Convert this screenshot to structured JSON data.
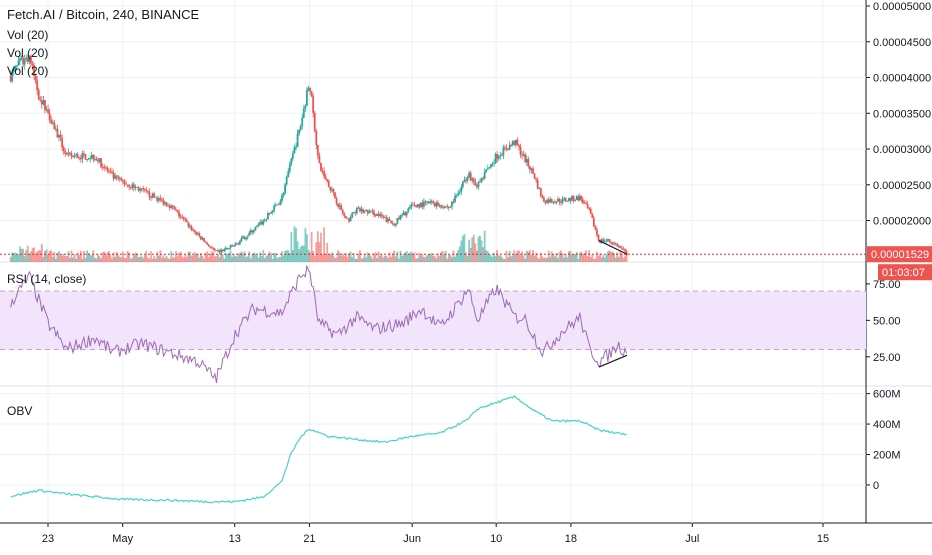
{
  "header": {
    "symbol_title": "Fetch.AI / Bitcoin, 240, BINANCE",
    "volume_labels": [
      "Vol (20)",
      "Vol (20)",
      "Vol (20)"
    ]
  },
  "colors": {
    "up": "#26a69a",
    "down": "#ef5350",
    "rsi_line": "#9c6ab2",
    "rsi_band_fill": "#f1e4fb",
    "rsi_band_border": "#c4a0d6",
    "obv_line": "#45d3c6",
    "price_line": "#d32f2f",
    "price_badge": "#ef5350",
    "grid": "#eef0f3",
    "divergence_line": "#131722"
  },
  "chart_data": [
    {
      "type": "candlestick",
      "pane": "price",
      "title": "Fetch.AI / Bitcoin, 240, BINANCE",
      "ylim": [
        1.42e-05,
        5e-05
      ],
      "y_ticks": [
        "0.00005000",
        "0.00004500",
        "0.00004000",
        "0.00003500",
        "0.00003000",
        "0.00002500",
        "0.00002000"
      ],
      "y_tick_values": [
        5e-05,
        4.5e-05,
        4e-05,
        3.5e-05,
        3e-05,
        2.5e-05,
        2e-05
      ],
      "anchors": [
        {
          "x": "Apr 19",
          "close": 4.02e-05
        },
        {
          "x": "Apr 20",
          "close": 4.2e-05
        },
        {
          "x": "Apr 21",
          "close": 4.3e-05
        },
        {
          "x": "Apr 22",
          "close": 3.75e-05
        },
        {
          "x": "Apr 23",
          "close": 3.52e-05
        },
        {
          "x": "Apr 25",
          "close": 2.9e-05
        },
        {
          "x": "Apr 28",
          "close": 2.9e-05
        },
        {
          "x": "Apr 30",
          "close": 2.6e-05
        },
        {
          "x": "May 3",
          "close": 2.42e-05
        },
        {
          "x": "May 6",
          "close": 2.22e-05
        },
        {
          "x": "May 9",
          "close": 1.8e-05
        },
        {
          "x": "May 11",
          "close": 1.55e-05
        },
        {
          "x": "May 13",
          "close": 1.65e-05
        },
        {
          "x": "May 16",
          "close": 1.98e-05
        },
        {
          "x": "May 18",
          "close": 2.3e-05
        },
        {
          "x": "May 20",
          "close": 3.3e-05
        },
        {
          "x": "May 21",
          "close": 3.95e-05
        },
        {
          "x": "May 22",
          "close": 2.78e-05
        },
        {
          "x": "May 23",
          "close": 2.52e-05
        },
        {
          "x": "May 25",
          "close": 1.98e-05
        },
        {
          "x": "May 26",
          "close": 2.15e-05
        },
        {
          "x": "May 28",
          "close": 2.1e-05
        },
        {
          "x": "May 30",
          "close": 1.95e-05
        },
        {
          "x": "Jun 1",
          "close": 2.2e-05
        },
        {
          "x": "Jun 3",
          "close": 2.25e-05
        },
        {
          "x": "Jun 5",
          "close": 2.18e-05
        },
        {
          "x": "Jun 7",
          "close": 2.65e-05
        },
        {
          "x": "Jun 8",
          "close": 2.48e-05
        },
        {
          "x": "Jun 10",
          "close": 2.9e-05
        },
        {
          "x": "Jun 12",
          "close": 3.1e-05
        },
        {
          "x": "Jun 14",
          "close": 2.65e-05
        },
        {
          "x": "Jun 15",
          "close": 2.28e-05
        },
        {
          "x": "Jun 17",
          "close": 2.28e-05
        },
        {
          "x": "Jun 19",
          "close": 2.32e-05
        },
        {
          "x": "Jun 20",
          "close": 2.12e-05
        },
        {
          "x": "Jun 21",
          "close": 1.72e-05
        },
        {
          "x": "Jun 22",
          "close": 1.72e-05
        },
        {
          "x": "Jun 23",
          "close": 1.65e-05
        },
        {
          "x": "Jun 24",
          "close": 1.529e-05
        }
      ],
      "last_price": 1.529e-05,
      "last_price_label": "0.00001529",
      "countdown_label": "01:03:07",
      "divergence_line": [
        {
          "x": "Jun 21",
          "y": 1.72e-05
        },
        {
          "x": "Jun 24",
          "y": 1.53e-05
        }
      ]
    },
    {
      "type": "bar",
      "pane": "volume",
      "series_name": "Vol (20)",
      "notes": "relative volume bars along the bottom of the price pane; spikes around May 20-22 and Jun 7"
    },
    {
      "type": "line",
      "pane": "rsi",
      "title": "RSI (14, close)",
      "ylim": [
        5,
        90
      ],
      "band": [
        30,
        70
      ],
      "y_ticks": [
        "75.00",
        "50.00",
        "25.00"
      ],
      "y_tick_values": [
        75,
        50,
        25
      ],
      "anchors": [
        {
          "x": "Apr 19",
          "y": 62
        },
        {
          "x": "Apr 21",
          "y": 80
        },
        {
          "x": "Apr 23",
          "y": 48
        },
        {
          "x": "Apr 25",
          "y": 30
        },
        {
          "x": "Apr 28",
          "y": 38
        },
        {
          "x": "Apr 30",
          "y": 28
        },
        {
          "x": "May 3",
          "y": 34
        },
        {
          "x": "May 6",
          "y": 28
        },
        {
          "x": "May 9",
          "y": 22
        },
        {
          "x": "May 11",
          "y": 10
        },
        {
          "x": "May 13",
          "y": 40
        },
        {
          "x": "May 15",
          "y": 58
        },
        {
          "x": "May 18",
          "y": 55
        },
        {
          "x": "May 20",
          "y": 80
        },
        {
          "x": "May 21",
          "y": 85
        },
        {
          "x": "May 22",
          "y": 48
        },
        {
          "x": "May 24",
          "y": 40
        },
        {
          "x": "May 26",
          "y": 52
        },
        {
          "x": "May 28",
          "y": 44
        },
        {
          "x": "May 31",
          "y": 48
        },
        {
          "x": "Jun 2",
          "y": 58
        },
        {
          "x": "Jun 4",
          "y": 45
        },
        {
          "x": "Jun 6",
          "y": 62
        },
        {
          "x": "Jun 7",
          "y": 72
        },
        {
          "x": "Jun 8",
          "y": 50
        },
        {
          "x": "Jun 10",
          "y": 72
        },
        {
          "x": "Jun 12",
          "y": 52
        },
        {
          "x": "Jun 13",
          "y": 52
        },
        {
          "x": "Jun 15",
          "y": 28
        },
        {
          "x": "Jun 17",
          "y": 42
        },
        {
          "x": "Jun 19",
          "y": 52
        },
        {
          "x": "Jun 20",
          "y": 30
        },
        {
          "x": "Jun 21",
          "y": 22
        },
        {
          "x": "Jun 22",
          "y": 26
        },
        {
          "x": "Jun 23",
          "y": 33
        },
        {
          "x": "Jun 24",
          "y": 28
        }
      ],
      "divergence_line": [
        {
          "x": "Jun 21",
          "y": 18
        },
        {
          "x": "Jun 24",
          "y": 26
        }
      ]
    },
    {
      "type": "line",
      "pane": "obv",
      "title": "OBV",
      "ylim": [
        -250,
        650
      ],
      "y_ticks": [
        "600M",
        "400M",
        "200M",
        "0"
      ],
      "y_tick_values": [
        600,
        400,
        200,
        0
      ],
      "unit": "M",
      "anchors": [
        {
          "x": "Apr 19",
          "y": -75
        },
        {
          "x": "Apr 22",
          "y": -35
        },
        {
          "x": "Apr 25",
          "y": -60
        },
        {
          "x": "May 1",
          "y": -95
        },
        {
          "x": "May 6",
          "y": -100
        },
        {
          "x": "May 10",
          "y": -110
        },
        {
          "x": "May 13",
          "y": -110
        },
        {
          "x": "May 16",
          "y": -80
        },
        {
          "x": "May 18",
          "y": 20
        },
        {
          "x": "May 19",
          "y": 200
        },
        {
          "x": "May 20",
          "y": 310
        },
        {
          "x": "May 21",
          "y": 370
        },
        {
          "x": "May 23",
          "y": 320
        },
        {
          "x": "May 26",
          "y": 300
        },
        {
          "x": "May 29",
          "y": 280
        },
        {
          "x": "Jun 1",
          "y": 320
        },
        {
          "x": "Jun 4",
          "y": 340
        },
        {
          "x": "Jun 7",
          "y": 430
        },
        {
          "x": "Jun 8",
          "y": 500
        },
        {
          "x": "Jun 10",
          "y": 540
        },
        {
          "x": "Jun 12",
          "y": 580
        },
        {
          "x": "Jun 14",
          "y": 490
        },
        {
          "x": "Jun 16",
          "y": 420
        },
        {
          "x": "Jun 19",
          "y": 420
        },
        {
          "x": "Jun 21",
          "y": 360
        },
        {
          "x": "Jun 24",
          "y": 330
        }
      ]
    },
    {
      "type": "axis",
      "pane": "time",
      "tick_labels": [
        "23",
        "May",
        "13",
        "21",
        "Jun",
        "10",
        "18",
        "Jul",
        "15"
      ],
      "tick_dates": [
        "Apr 23",
        "May 1",
        "May 13",
        "May 21",
        "Jun 1",
        "Jun 10",
        "Jun 18",
        "Jul 1",
        "Jul 15"
      ]
    }
  ]
}
